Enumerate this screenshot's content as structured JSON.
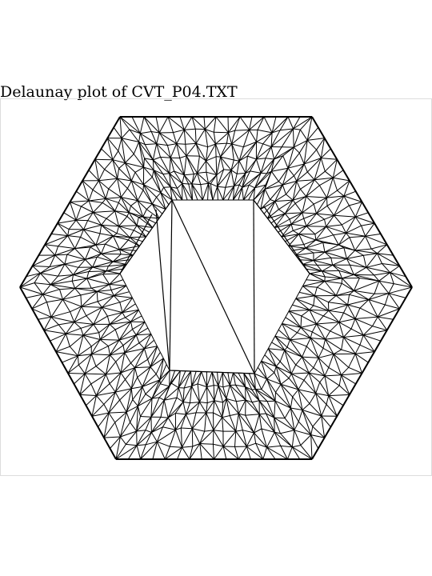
{
  "title": "Delaunay plot of CVT_P04.TXT",
  "colors": {
    "edge": "#000000",
    "frame": "#dddddd",
    "background": "#ffffff"
  }
}
